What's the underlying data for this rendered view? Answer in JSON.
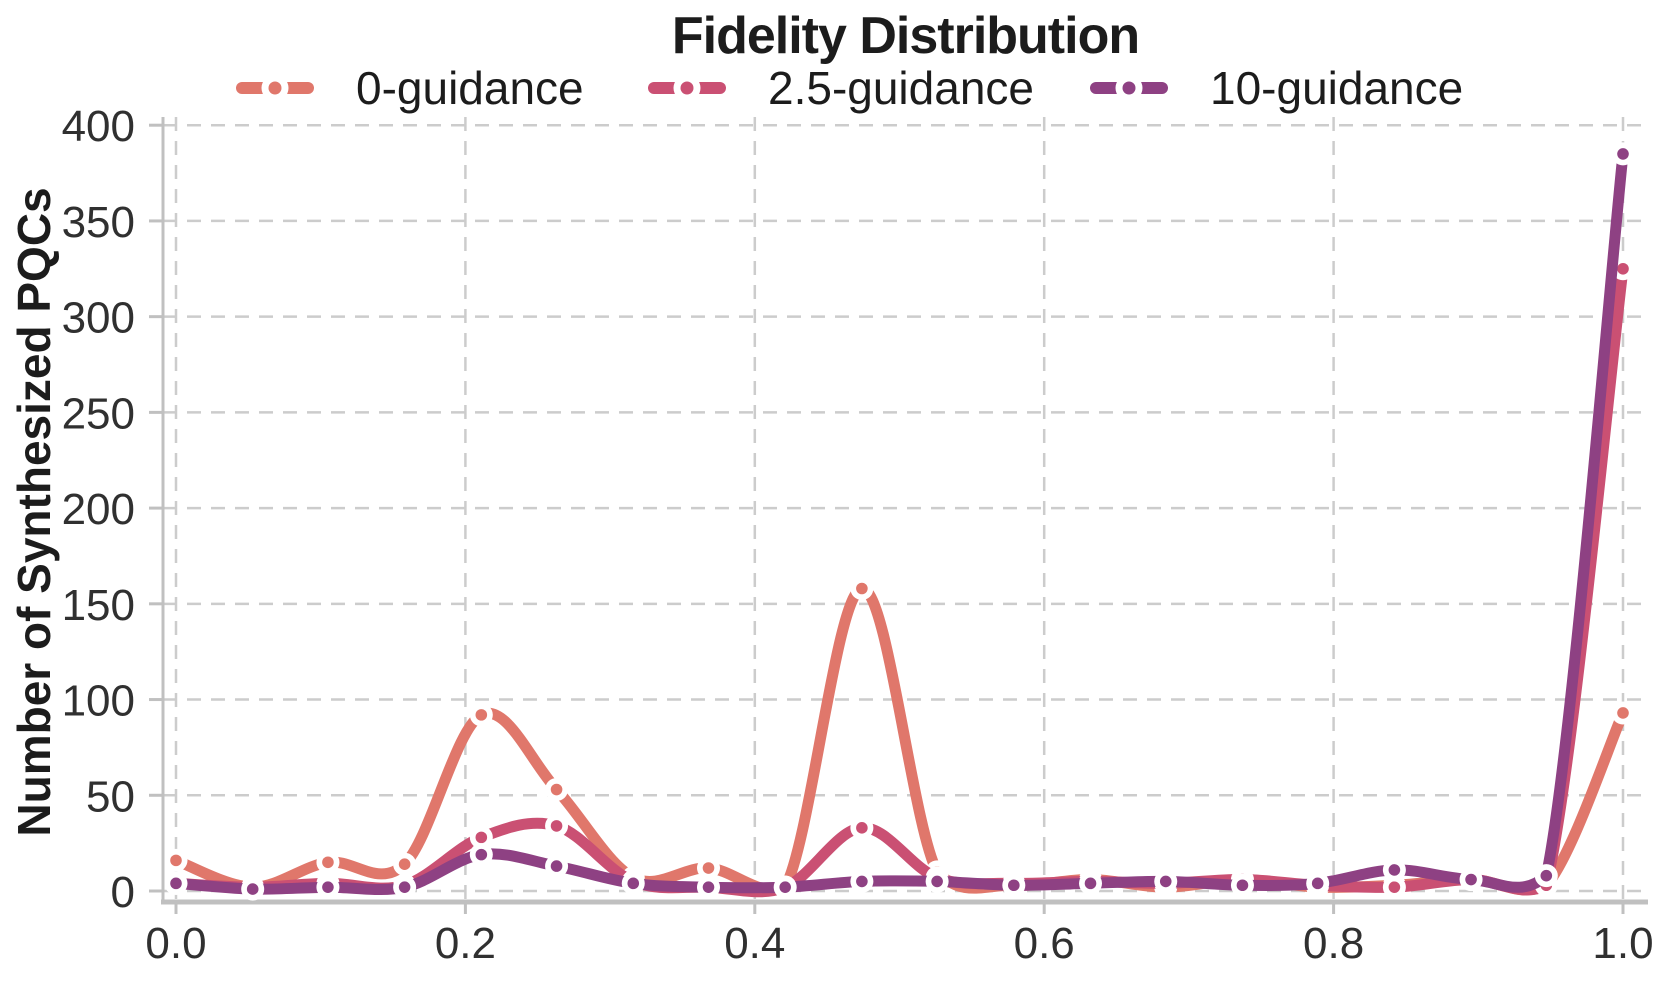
{
  "title": "Fidelity Distribution",
  "y_axis": {
    "label": "Number of Synthesized PQCs"
  },
  "chart_data": {
    "type": "line",
    "title": "Fidelity Distribution",
    "xlabel": "",
    "ylabel": "Number of Synthesized PQCs",
    "xlim": [
      0,
      1
    ],
    "ylim": [
      0,
      400
    ],
    "grid": true,
    "grid_style": "dashed",
    "legend_position": "top",
    "marker": "circle-in-white-ring",
    "x": [
      0.0,
      0.053,
      0.105,
      0.158,
      0.211,
      0.263,
      0.316,
      0.368,
      0.421,
      0.474,
      0.526,
      0.579,
      0.632,
      0.684,
      0.737,
      0.789,
      0.842,
      0.895,
      0.947,
      1.0
    ],
    "series": [
      {
        "name": "0-guidance",
        "color": "#e0776b",
        "values": [
          16,
          2,
          15,
          14,
          92,
          53,
          7,
          12,
          2,
          158,
          10,
          3,
          6,
          2,
          6,
          2,
          3,
          6,
          3,
          93
        ]
      },
      {
        "name": "2.5-guidance",
        "color": "#ca5073",
        "values": [
          4,
          2,
          4,
          3,
          28,
          34,
          5,
          2,
          2,
          33,
          7,
          4,
          5,
          4,
          6,
          3,
          2,
          6,
          3,
          325
        ]
      },
      {
        "name": "10-guidance",
        "color": "#8e4183",
        "values": [
          4,
          1,
          2,
          2,
          19,
          13,
          4,
          2,
          2,
          5,
          5,
          3,
          4,
          5,
          3,
          4,
          11,
          6,
          8,
          385
        ]
      }
    ],
    "y_ticks": [
      0,
      50,
      100,
      150,
      200,
      250,
      300,
      350,
      400
    ],
    "x_tick_values": [
      0.0,
      0.2,
      0.4,
      0.6,
      0.8,
      1.0
    ],
    "x_tick_labels": [
      "0.0",
      "0.2",
      "0.4",
      "0.6",
      "0.8",
      "1.0"
    ],
    "grid_color": "#cccccc",
    "spine_color": "#c0c0c0",
    "tick_label_color": "#303030"
  }
}
